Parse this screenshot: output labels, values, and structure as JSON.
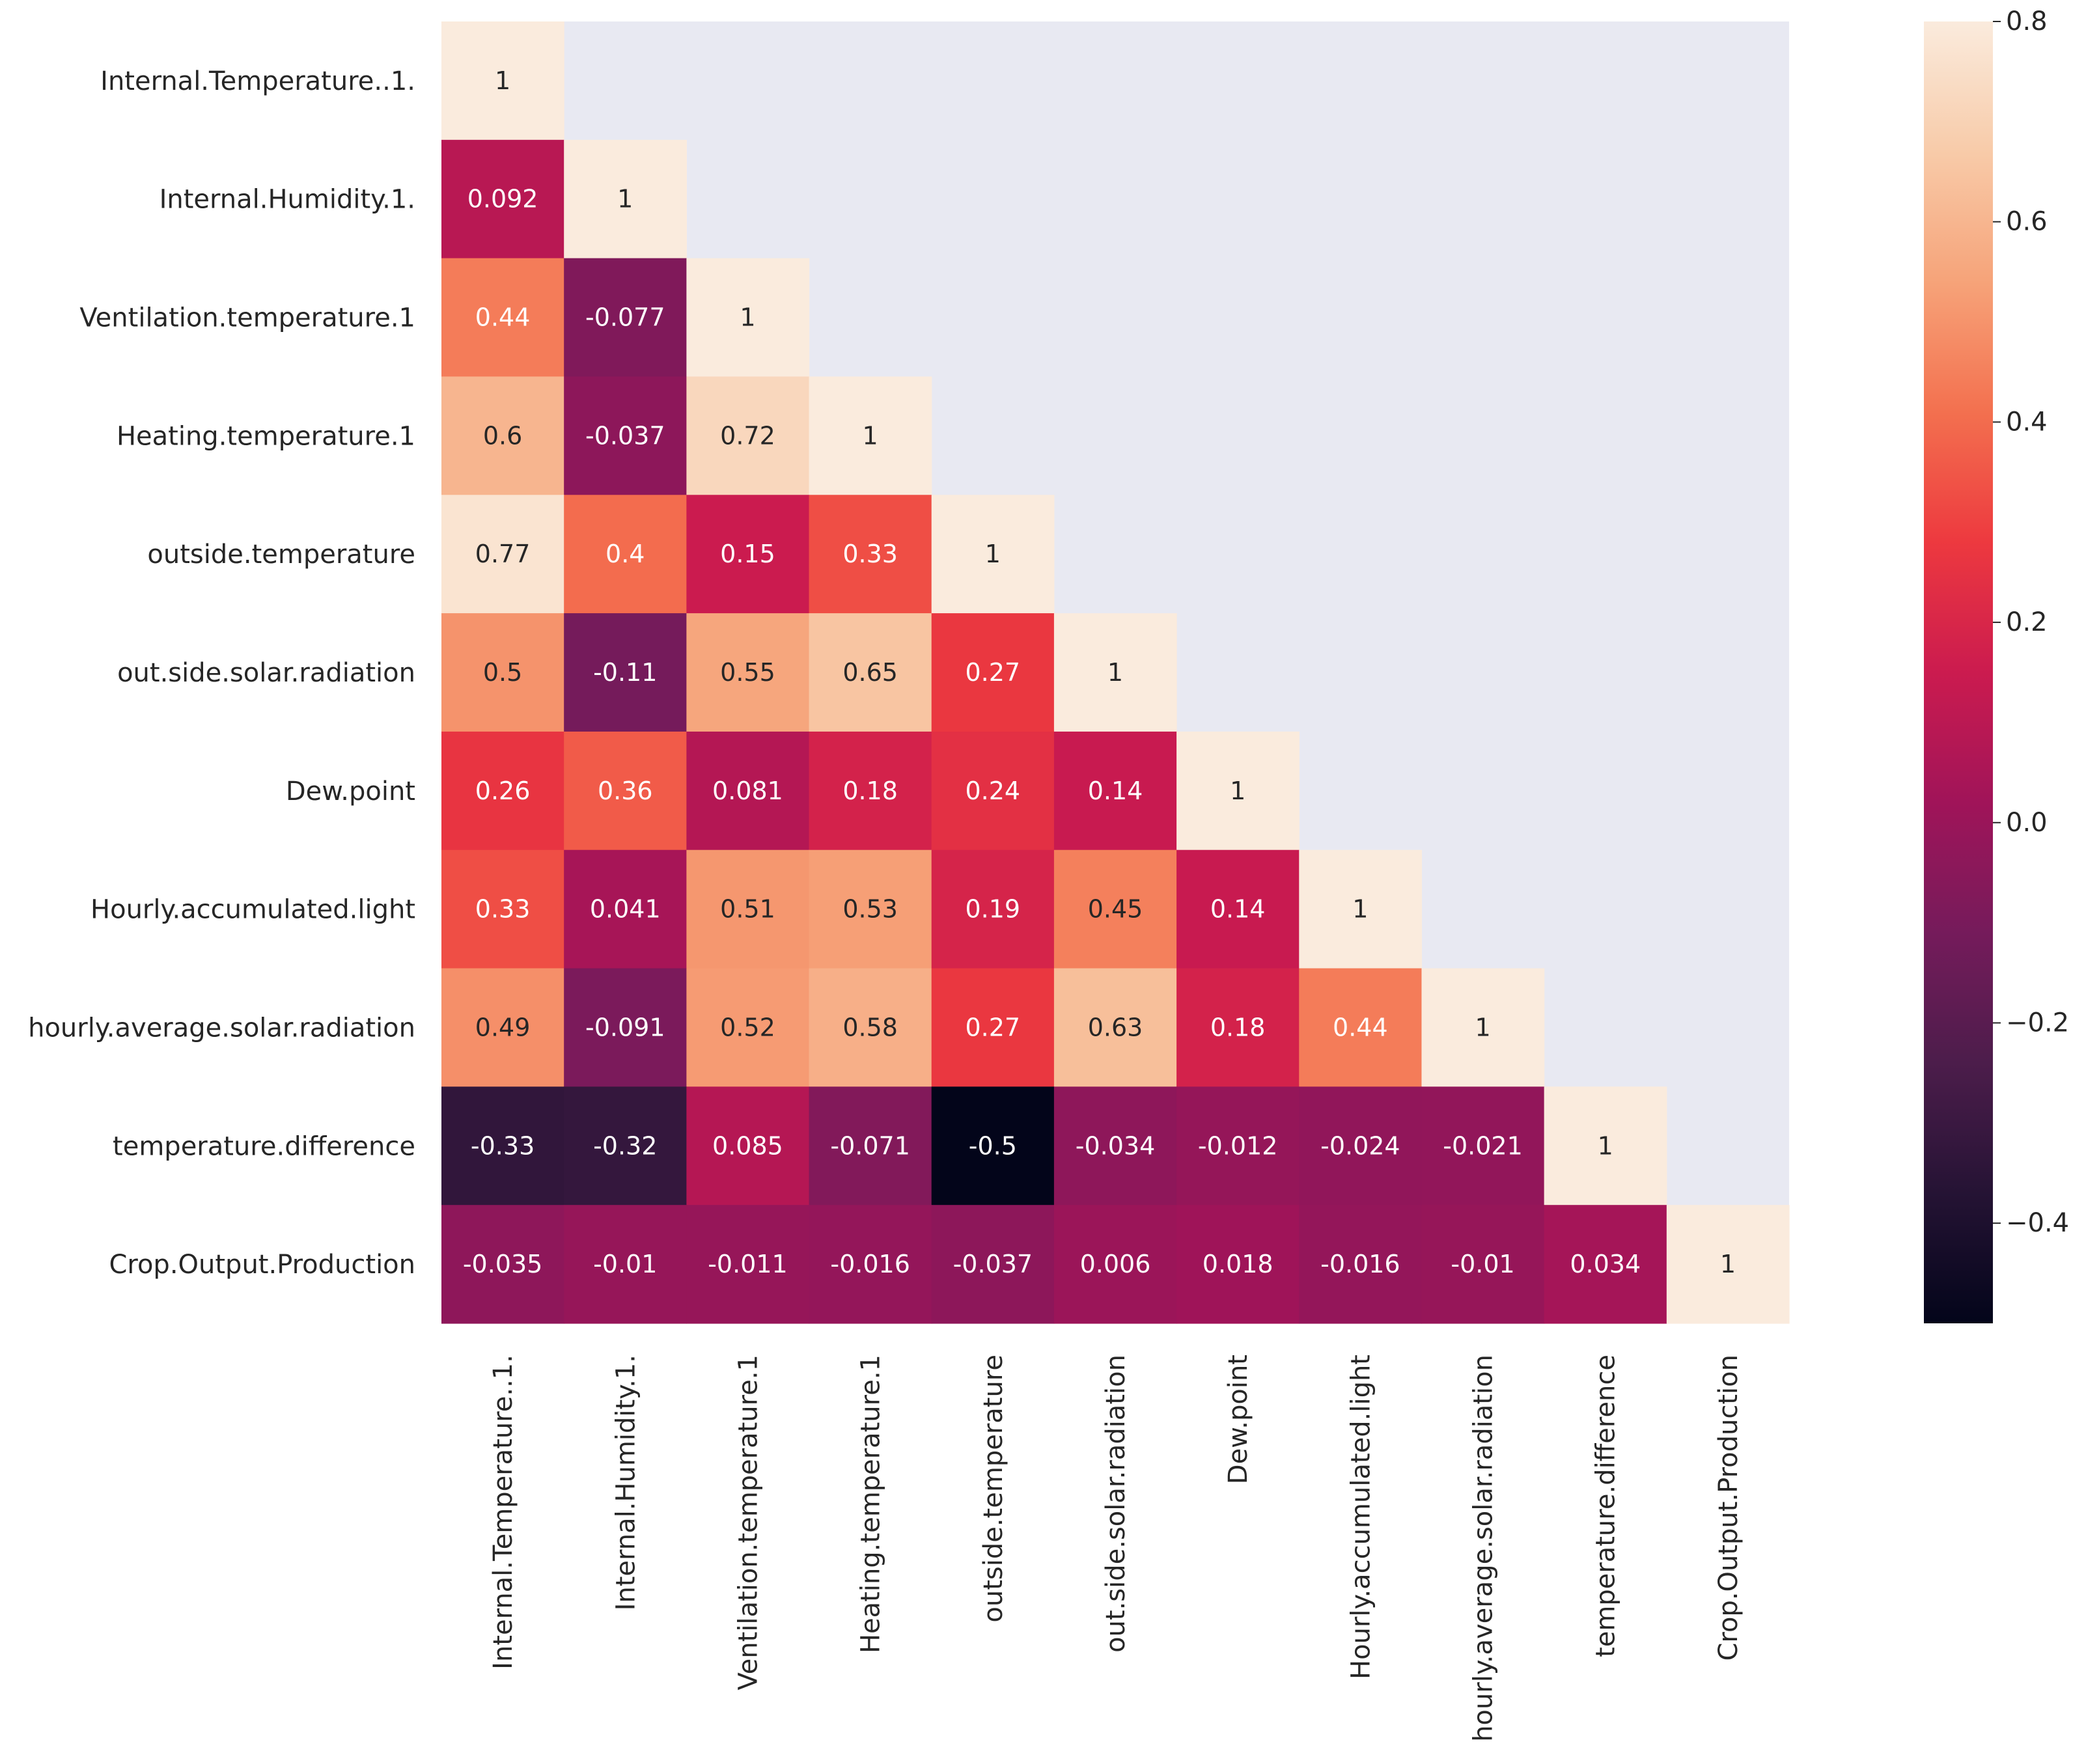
{
  "chart_data": {
    "type": "heatmap",
    "mask": "upper-triangle",
    "labels": [
      "Internal.Temperature..1.",
      "Internal.Humidity.1.",
      "Ventilation.temperature.1",
      "Heating.temperature.1",
      "outside.temperature",
      "out.side.solar.radiation",
      "Dew.point",
      "Hourly.accumulated.light",
      "hourly.average.solar.radiation",
      "temperature.difference",
      "Crop.Output.Production"
    ],
    "rows": [
      [
        1
      ],
      [
        0.092,
        1
      ],
      [
        0.44,
        -0.077,
        1
      ],
      [
        0.6,
        -0.037,
        0.72,
        1
      ],
      [
        0.77,
        0.4,
        0.15,
        0.33,
        1
      ],
      [
        0.5,
        -0.11,
        0.55,
        0.65,
        0.27,
        1
      ],
      [
        0.26,
        0.36,
        0.081,
        0.18,
        0.24,
        0.14,
        1
      ],
      [
        0.33,
        0.041,
        0.51,
        0.53,
        0.19,
        0.45,
        0.14,
        1
      ],
      [
        0.49,
        -0.091,
        0.52,
        0.58,
        0.27,
        0.63,
        0.18,
        0.44,
        1
      ],
      [
        -0.33,
        -0.32,
        0.085,
        -0.071,
        -0.5,
        -0.034,
        -0.012,
        -0.024,
        -0.021,
        1
      ],
      [
        -0.035,
        -0.01,
        -0.011,
        -0.016,
        -0.037,
        0.006,
        0.018,
        -0.016,
        -0.01,
        0.034,
        1
      ]
    ],
    "colormap": "rocket",
    "vmin": -0.5,
    "vmax": 0.8,
    "colorbar_ticks": [
      0.8,
      0.6,
      0.4,
      0.2,
      0.0,
      -0.2,
      -0.4
    ],
    "colorbar_tick_labels": [
      "0.8",
      "0.6",
      "0.4",
      "0.2",
      "0.0",
      "−0.2",
      "−0.4"
    ],
    "background_color": "#e8e9f2"
  }
}
